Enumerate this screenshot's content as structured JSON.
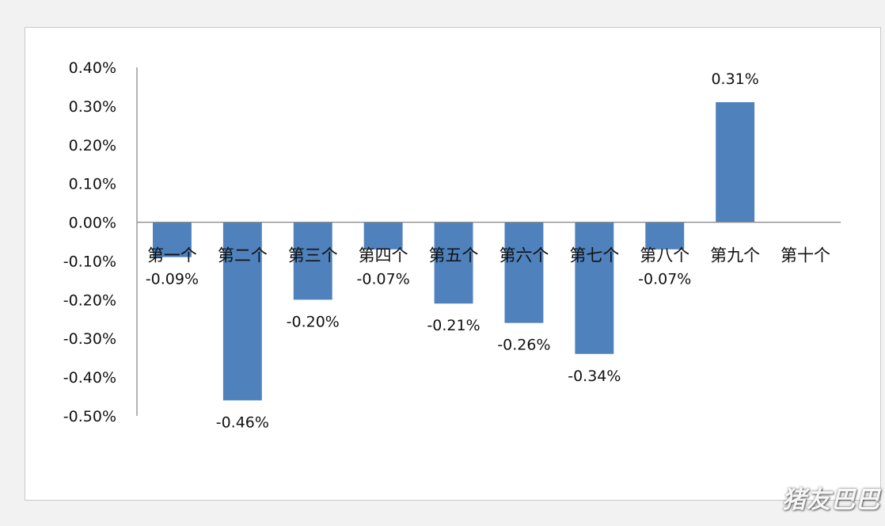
{
  "chart_data": {
    "type": "bar",
    "title": "",
    "xlabel": "",
    "ylabel": "",
    "categories": [
      "第一个",
      "第二个",
      "第三个",
      "第四个",
      "第五个",
      "第六个",
      "第七个",
      "第八个",
      "第九个",
      "第十个"
    ],
    "values": [
      -0.09,
      -0.46,
      -0.2,
      -0.07,
      -0.21,
      -0.26,
      -0.34,
      -0.07,
      0.31,
      null
    ],
    "data_labels": [
      "-0.09%",
      "-0.46%",
      "-0.20%",
      "-0.07%",
      "-0.21%",
      "-0.26%",
      "-0.34%",
      "-0.07%",
      "0.31%",
      ""
    ],
    "ylim": [
      -0.5,
      0.4
    ],
    "yticks": [
      0.4,
      0.3,
      0.2,
      0.1,
      0.0,
      -0.1,
      -0.2,
      -0.3,
      -0.4,
      -0.5
    ],
    "ytick_labels": [
      "0.40%",
      "0.30%",
      "0.20%",
      "0.10%",
      "0.00%",
      "-0.10%",
      "-0.20%",
      "-0.30%",
      "-0.40%",
      "-0.50%"
    ],
    "y_unit": "%",
    "grid": false,
    "legend": "none",
    "bar_color": "#4f81bd"
  },
  "watermark": "猪友巴巴"
}
